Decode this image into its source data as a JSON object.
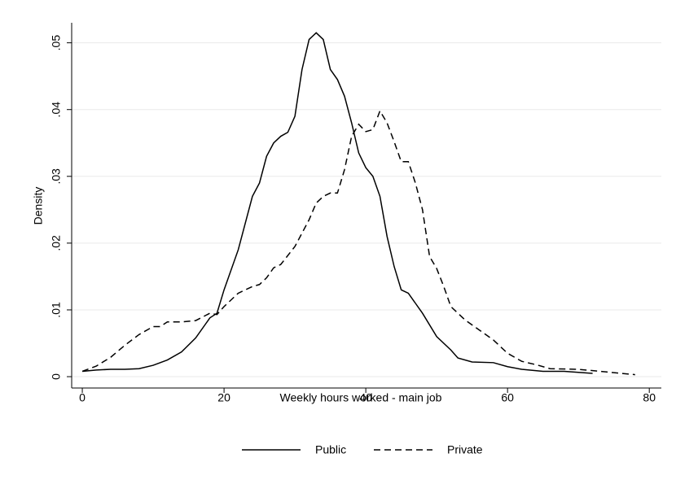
{
  "chart_data": {
    "type": "line",
    "x_label": "Weekly hours worked - main job",
    "y_label": "Density",
    "xlim": [
      -1.5,
      81.7
    ],
    "ylim": [
      -0.0017,
      0.053
    ],
    "xticks": [
      0,
      20,
      40,
      60,
      80
    ],
    "yticks": [
      0,
      {
        "value": 0.01,
        "label": ".01"
      },
      {
        "value": 0.02,
        "label": ".02"
      },
      {
        "value": 0.03,
        "label": ".03"
      },
      {
        "value": 0.04,
        "label": ".04"
      },
      {
        "value": 0.05,
        "label": ".05"
      }
    ],
    "grid": true,
    "legend": "bottom",
    "series": [
      {
        "name": "Public",
        "color": "#000000",
        "dash": "solid",
        "x": [
          0,
          2,
          4,
          6,
          8,
          10,
          12,
          14,
          16,
          18,
          19,
          20,
          22,
          24,
          25,
          26,
          27,
          28,
          29,
          30,
          31,
          32,
          33,
          34,
          35,
          36,
          37,
          38,
          39,
          40,
          41,
          42,
          43,
          44,
          45,
          46,
          47,
          48,
          50,
          52,
          53,
          55,
          58,
          60,
          62,
          65,
          68,
          72
        ],
        "values": [
          0.0008,
          0.001,
          0.0011,
          0.0011,
          0.0012,
          0.0017,
          0.0025,
          0.0037,
          0.0058,
          0.0088,
          0.0095,
          0.013,
          0.019,
          0.027,
          0.029,
          0.033,
          0.035,
          0.036,
          0.0366,
          0.039,
          0.046,
          0.0505,
          0.0515,
          0.0505,
          0.046,
          0.0445,
          0.042,
          0.038,
          0.0335,
          0.0313,
          0.03,
          0.027,
          0.021,
          0.0165,
          0.013,
          0.0125,
          0.011,
          0.0095,
          0.006,
          0.004,
          0.0028,
          0.0022,
          0.0021,
          0.0015,
          0.0011,
          0.0008,
          0.0008,
          0.0005
        ]
      },
      {
        "name": "Private",
        "color": "#000000",
        "dash": "dashed",
        "x": [
          0,
          2,
          4,
          6,
          8,
          10,
          11,
          12,
          14,
          16,
          18,
          19,
          20,
          22,
          24,
          25,
          26,
          27,
          28,
          30,
          32,
          33,
          34,
          35,
          36,
          37,
          38,
          39,
          40,
          41,
          42,
          43,
          44,
          45,
          46,
          47,
          48,
          49,
          50,
          51,
          52,
          54,
          56,
          58,
          60,
          62,
          64,
          66,
          70,
          74,
          78
        ],
        "values": [
          0.0008,
          0.0016,
          0.0029,
          0.0047,
          0.0063,
          0.0075,
          0.0075,
          0.0082,
          0.0082,
          0.0084,
          0.0095,
          0.0093,
          0.0105,
          0.0125,
          0.0135,
          0.0138,
          0.0148,
          0.0163,
          0.0168,
          0.0195,
          0.0235,
          0.026,
          0.027,
          0.0275,
          0.0275,
          0.031,
          0.036,
          0.0378,
          0.0367,
          0.037,
          0.0398,
          0.038,
          0.0352,
          0.0322,
          0.0322,
          0.029,
          0.025,
          0.018,
          0.0162,
          0.0135,
          0.0105,
          0.0085,
          0.007,
          0.0055,
          0.0035,
          0.0023,
          0.0018,
          0.0012,
          0.0011,
          0.0007,
          0.0003
        ]
      }
    ]
  }
}
